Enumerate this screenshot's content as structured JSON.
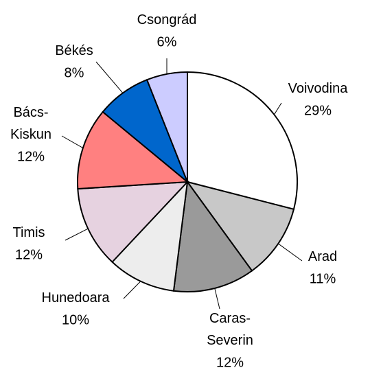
{
  "chart_data": {
    "type": "pie",
    "categories": [
      "Voivodina",
      "Arad",
      "Caras-Severin",
      "Hunedoara",
      "Timis",
      "Bács-Kiskun",
      "Békés",
      "Csongrád"
    ],
    "values": [
      29,
      11,
      12,
      10,
      12,
      12,
      8,
      6
    ],
    "value_labels": [
      "29%",
      "11%",
      "12%",
      "10%",
      "12%",
      "12%",
      "8%",
      "6%"
    ],
    "colors": [
      "#ffffff",
      "#c8c8c8",
      "#9a9a9a",
      "#ededed",
      "#e6d2e0",
      "#ff8080",
      "#0066cc",
      "#ccccff"
    ]
  }
}
